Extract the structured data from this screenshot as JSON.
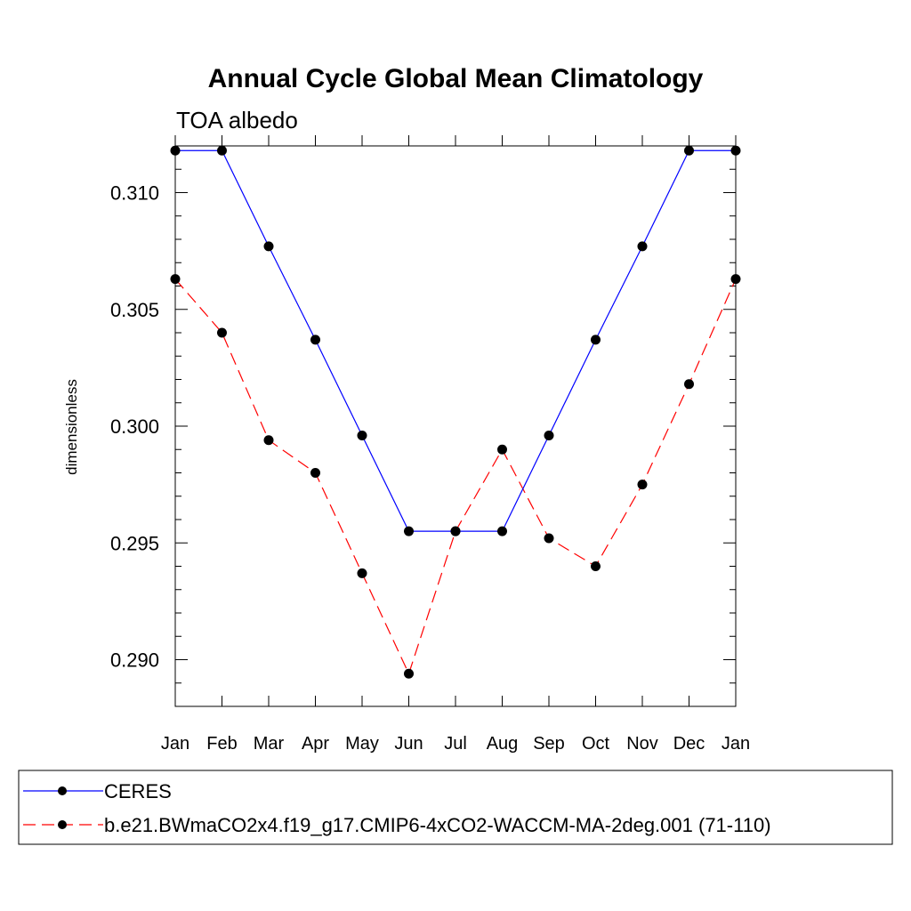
{
  "chart_data": {
    "type": "line",
    "title": "Annual Cycle Global Mean Climatology",
    "subtitle": "TOA albedo",
    "ylabel": "dimensionless",
    "xlabel": "",
    "categories": [
      "Jan",
      "Feb",
      "Mar",
      "Apr",
      "May",
      "Jun",
      "Jul",
      "Aug",
      "Sep",
      "Oct",
      "Nov",
      "Dec",
      "Jan"
    ],
    "ylim": [
      0.288,
      0.312
    ],
    "yticks": [
      0.29,
      0.295,
      0.3,
      0.305,
      0.31
    ],
    "ytick_labels": [
      "0.290",
      "0.295",
      "0.300",
      "0.305",
      "0.310"
    ],
    "series": [
      {
        "name": "CERES",
        "color": "#0000ff",
        "dash": "solid",
        "values": [
          0.3118,
          0.3118,
          0.3077,
          0.3037,
          0.2996,
          0.2955,
          0.2955,
          0.2955,
          0.2996,
          0.3037,
          0.3077,
          0.3118,
          0.3118
        ]
      },
      {
        "name": "b.e21.BWmaCO2x4.f19_g17.CMIP6-4xCO2-WACCM-MA-2deg.001 (71-110)",
        "color": "#ff0000",
        "dash": "dashed",
        "values": [
          0.3063,
          0.304,
          0.2994,
          0.298,
          0.2937,
          0.2894,
          0.2955,
          0.299,
          0.2952,
          0.294,
          0.2975,
          0.3018,
          0.3063
        ]
      }
    ],
    "legend_position": "bottom"
  }
}
